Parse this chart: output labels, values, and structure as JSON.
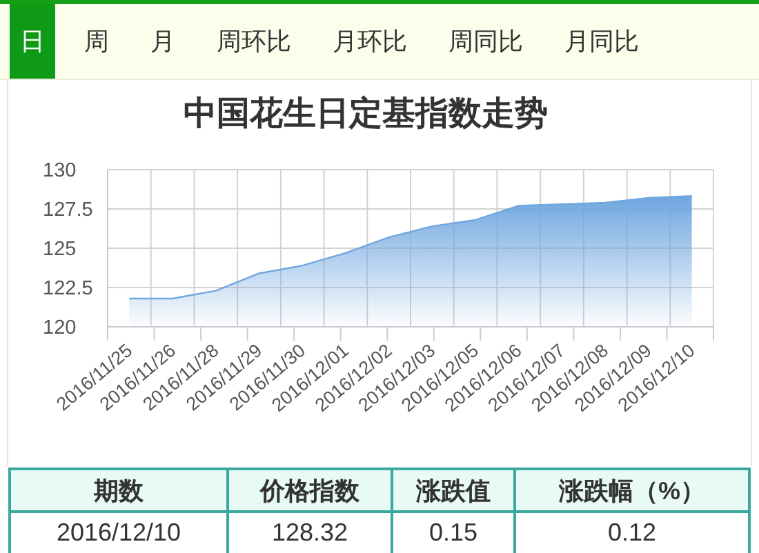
{
  "chart_data": {
    "type": "area",
    "title": "中国花生日定基指数走势",
    "categories": [
      "2016/11/25",
      "2016/11/26",
      "2016/11/28",
      "2016/11/29",
      "2016/11/30",
      "2016/12/01",
      "2016/12/02",
      "2016/12/03",
      "2016/12/05",
      "2016/12/06",
      "2016/12/07",
      "2016/12/08",
      "2016/12/09",
      "2016/12/10"
    ],
    "values": [
      121.8,
      121.8,
      122.3,
      123.4,
      123.9,
      124.7,
      125.7,
      126.4,
      126.8,
      127.7,
      127.8,
      127.9,
      128.2,
      128.32
    ],
    "color": "#6fa6df",
    "ylim": [
      120,
      130
    ],
    "yticks": [
      120,
      122.5,
      125,
      127.5,
      130
    ],
    "grid": true,
    "annotations": [
      "日",
      "周",
      "月",
      "周环比",
      "月环比",
      "周同比",
      "月同比",
      "期数",
      "价格指数",
      "涨跌值",
      "涨跌幅（%）",
      "2016/12/10",
      "128.32",
      "0.15",
      "0.12"
    ]
  }
}
